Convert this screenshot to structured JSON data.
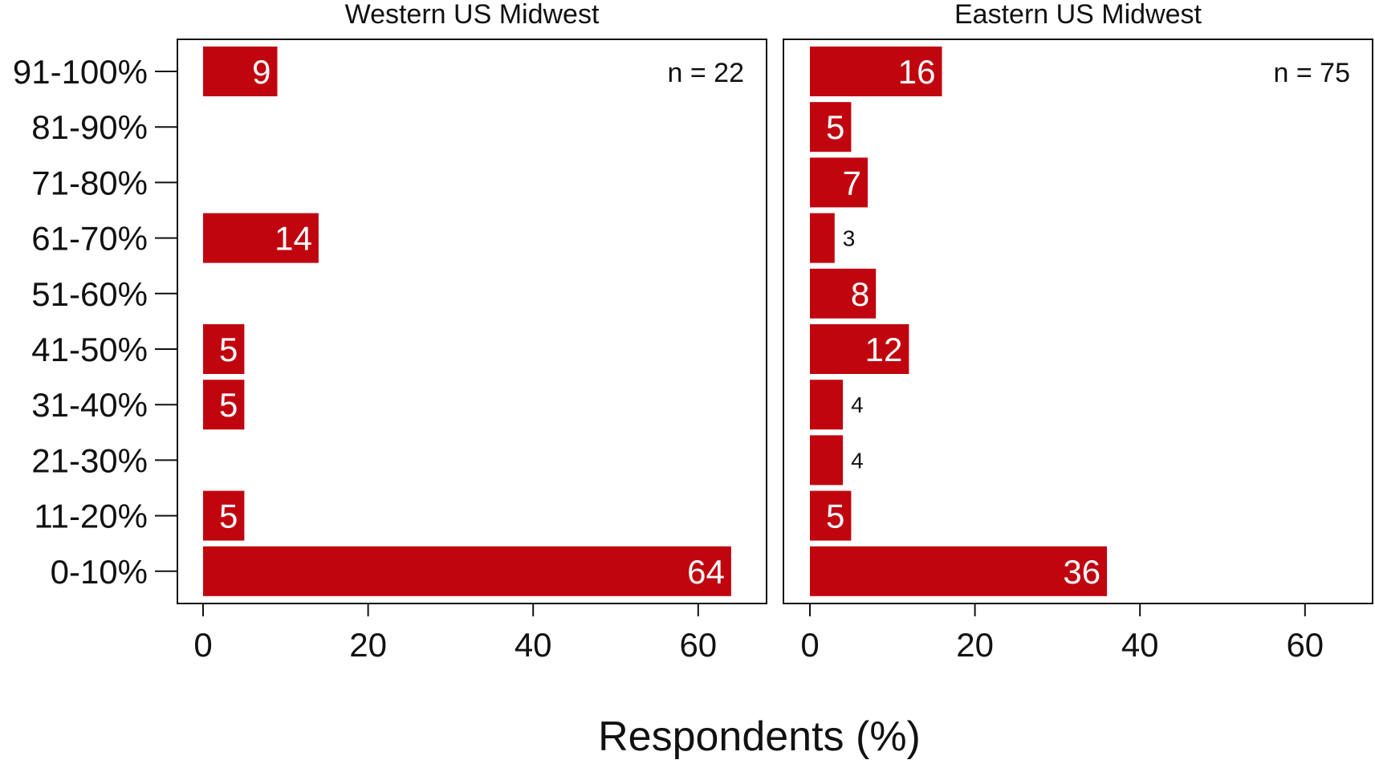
{
  "chart_data": {
    "type": "bar",
    "orientation": "horizontal",
    "categories": [
      "91-100%",
      "81-90%",
      "71-80%",
      "61-70%",
      "51-60%",
      "41-50%",
      "31-40%",
      "21-30%",
      "11-20%",
      "0-10%"
    ],
    "series": [
      {
        "name": "Western US Midwest",
        "n_label": "n = 22",
        "values": [
          9,
          null,
          null,
          14,
          null,
          5,
          5,
          null,
          5,
          64
        ],
        "labels": [
          "9",
          "",
          "",
          "14",
          "",
          "5",
          "5",
          "",
          "5",
          "64"
        ]
      },
      {
        "name": "Eastern US Midwest",
        "n_label": "n = 75",
        "values": [
          16,
          5,
          7,
          3,
          8,
          12,
          4,
          4,
          5,
          36
        ],
        "labels": [
          "16",
          "5",
          "7",
          "3",
          "8",
          "12",
          "4",
          "4",
          "5",
          "36"
        ]
      }
    ],
    "xlabel": "Respondents (%)",
    "ylabel": "",
    "xlim": [
      0,
      68
    ],
    "xticks": [
      0,
      20,
      40,
      60
    ],
    "bar_color": "#c0050f",
    "grid": false,
    "legend": "none"
  }
}
